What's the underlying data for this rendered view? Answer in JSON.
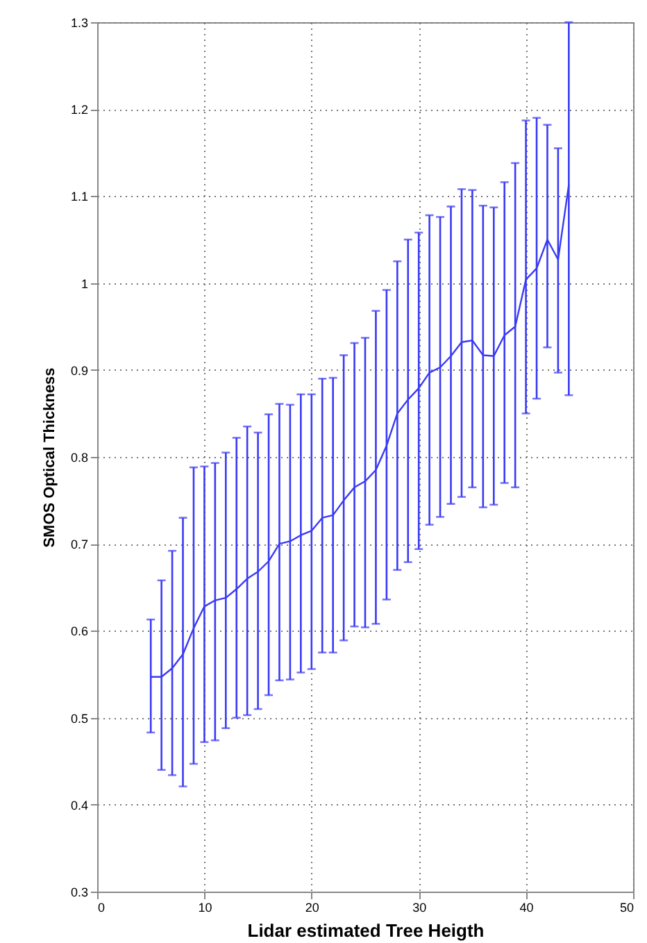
{
  "chart_data": {
    "type": "line",
    "xlabel": "Lidar estimated Tree Heigth",
    "ylabel": "SMOS Optical Thickness",
    "x": [
      5,
      6,
      7,
      8,
      9,
      10,
      11,
      12,
      13,
      14,
      15,
      16,
      17,
      18,
      19,
      20,
      21,
      22,
      23,
      24,
      25,
      26,
      27,
      28,
      29,
      30,
      31,
      32,
      33,
      34,
      35,
      36,
      37,
      38,
      39,
      40,
      41,
      42,
      43,
      44
    ],
    "series": [
      {
        "color": "#3a3af5",
        "values": [
          0.547,
          0.547,
          0.557,
          0.573,
          0.603,
          0.628,
          0.635,
          0.638,
          0.648,
          0.66,
          0.668,
          0.68,
          0.7,
          0.703,
          0.71,
          0.715,
          0.73,
          0.733,
          0.75,
          0.765,
          0.772,
          0.785,
          0.813,
          0.85,
          0.866,
          0.879,
          0.897,
          0.903,
          0.916,
          0.932,
          0.934,
          0.917,
          0.916,
          0.94,
          0.95,
          1.004,
          1.017,
          1.05,
          1.027,
          1.113
        ],
        "errors": [
          [
            0.483,
            0.613
          ],
          [
            0.44,
            0.658
          ],
          [
            0.434,
            0.692
          ],
          [
            0.421,
            0.73
          ],
          [
            0.447,
            0.788
          ],
          [
            0.472,
            0.789
          ],
          [
            0.474,
            0.793
          ],
          [
            0.488,
            0.805
          ],
          [
            0.5,
            0.822
          ],
          [
            0.503,
            0.835
          ],
          [
            0.51,
            0.828
          ],
          [
            0.526,
            0.849
          ],
          [
            0.543,
            0.861
          ],
          [
            0.544,
            0.86
          ],
          [
            0.552,
            0.872
          ],
          [
            0.556,
            0.872
          ],
          [
            0.575,
            0.89
          ],
          [
            0.575,
            0.891
          ],
          [
            0.589,
            0.917
          ],
          [
            0.605,
            0.931
          ],
          [
            0.604,
            0.937
          ],
          [
            0.608,
            0.968
          ],
          [
            0.636,
            0.992
          ],
          [
            0.67,
            1.025
          ],
          [
            0.679,
            1.05
          ],
          [
            0.694,
            1.058
          ],
          [
            0.722,
            1.078
          ],
          [
            0.731,
            1.076
          ],
          [
            0.746,
            1.088
          ],
          [
            0.754,
            1.108
          ],
          [
            0.765,
            1.107
          ],
          [
            0.742,
            1.089
          ],
          [
            0.745,
            1.087
          ],
          [
            0.77,
            1.116
          ],
          [
            0.765,
            1.138
          ],
          [
            0.85,
            1.187
          ],
          [
            0.867,
            1.19
          ],
          [
            0.926,
            1.182
          ],
          [
            0.897,
            1.155
          ],
          [
            0.871,
            1.3
          ]
        ]
      }
    ],
    "xlim": [
      0,
      50
    ],
    "xticks": [
      0,
      10,
      20,
      30,
      40,
      50
    ],
    "ylim": [
      0.3,
      1.3
    ],
    "yticks": [
      0.3,
      0.4,
      0.5,
      0.6,
      0.7,
      0.8,
      0.9,
      1,
      1.1,
      1.2,
      1.3
    ],
    "grid": true,
    "marker": "none",
    "line_style": "solid"
  }
}
